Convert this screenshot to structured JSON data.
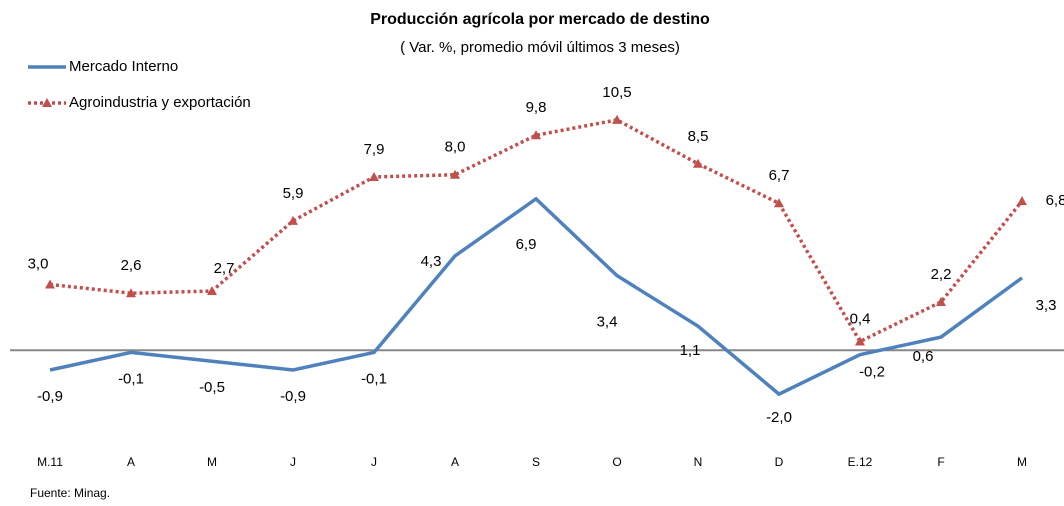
{
  "chart_data": {
    "type": "line",
    "title": "Producción agrícola por mercado de destino",
    "subtitle": "( Var. %, promedio móvil últimos 3 meses)",
    "source": "Fuente: Minag.",
    "categories": [
      "M.11",
      "A",
      "M",
      "J",
      "J",
      "A",
      "S",
      "O",
      "N",
      "D",
      "E.12",
      "F",
      "M"
    ],
    "ylim": [
      -4,
      12
    ],
    "series": [
      {
        "name": "Mercado Interno",
        "color": "#4f81bd",
        "style": "solid",
        "values": [
          -0.9,
          -0.1,
          -0.5,
          -0.9,
          -0.1,
          4.3,
          6.9,
          3.4,
          1.1,
          -2.0,
          -0.2,
          0.6,
          3.3
        ],
        "value_labels": [
          "-0,9",
          "-0,1",
          "-0,5",
          "-0,9",
          "-0,1",
          "4,3",
          "6,9",
          "3,4",
          "1,1",
          "-2,0",
          "-0,2",
          "0,6",
          "3,3"
        ]
      },
      {
        "name": "Agroindustria y exportación",
        "color": "#c0504d",
        "style": "dotted",
        "values": [
          3.0,
          2.6,
          2.7,
          5.9,
          7.9,
          8.0,
          9.8,
          10.5,
          8.5,
          6.7,
          0.4,
          2.2,
          6.8
        ],
        "value_labels": [
          "3,0",
          "2,6",
          "2,7",
          "5,9",
          "7,9",
          "8,0",
          "9,8",
          "10,5",
          "8,5",
          "6,7",
          "0,4",
          "2,2",
          "6,8"
        ]
      }
    ]
  }
}
